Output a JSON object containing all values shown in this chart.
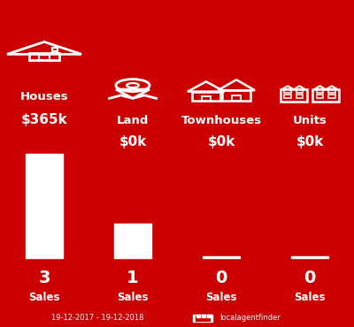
{
  "background_color": "#CC0000",
  "categories": [
    "Houses",
    "Land",
    "Townhouses",
    "Units"
  ],
  "prices": [
    "$365k",
    "$0k",
    "$0k",
    "$0k"
  ],
  "sales_values": [
    3,
    1,
    0,
    0
  ],
  "sales_labels": [
    "3",
    "1",
    "0",
    "0"
  ],
  "bar_color": "#FFFFFF",
  "text_color": "#FFFFFF",
  "date_label": "19-12-2017 - 19-12-2018",
  "watermark": "localagentfinder",
  "x_positions": [
    0.5,
    1.5,
    2.5,
    3.5
  ],
  "bar_width": 0.42
}
